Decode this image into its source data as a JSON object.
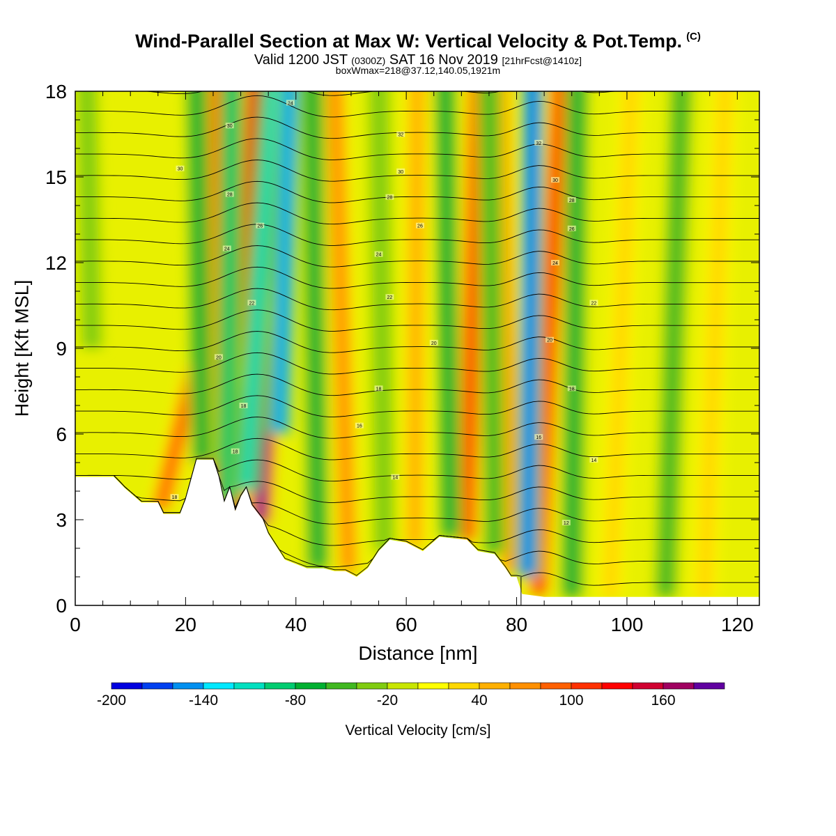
{
  "title": {
    "main": "Wind-Parallel Section at Max W: Vertical Velocity & Pot.Temp.",
    "mark": "(C)",
    "valid_a": "Valid 1200 JST ",
    "valid_b": "(0300Z)",
    "valid_c": " SAT 16 Nov 2019 ",
    "valid_d": "[21hrFcst@1410z]",
    "box": "boxWmax=218@37.12,140.05,1921m"
  },
  "chart_data": {
    "type": "heatmap",
    "xlabel": "Distance [nm]",
    "ylabel": "Height [Kft MSL]",
    "xlim": [
      0,
      124
    ],
    "ylim": [
      0,
      18
    ],
    "x_ticks": [
      0,
      20,
      40,
      60,
      80,
      100,
      120
    ],
    "y_ticks": [
      0,
      3,
      6,
      9,
      12,
      15,
      18
    ],
    "colorbar": {
      "label": "Vertical Velocity [cm/s]",
      "levels": [
        -200,
        -180,
        -160,
        -140,
        -120,
        -100,
        -80,
        -60,
        -40,
        -20,
        0,
        20,
        40,
        60,
        80,
        100,
        120,
        140,
        160,
        180,
        200
      ],
      "tick_labels": [
        "-200",
        "-140",
        "-80",
        "-20",
        "40",
        "100",
        "160"
      ],
      "colors": [
        "#0000e0",
        "#0040f0",
        "#0090f0",
        "#00e8ff",
        "#00e0c0",
        "#00cc70",
        "#00b030",
        "#40b820",
        "#80cc10",
        "#c8e600",
        "#ffff00",
        "#ffd800",
        "#ffb000",
        "#ff9000",
        "#ff6000",
        "#ff3000",
        "#ff0000",
        "#d00030",
        "#a00060",
        "#6000a0"
      ]
    },
    "terrain_top_kft": [
      [
        0,
        4.5
      ],
      [
        7,
        4.5
      ],
      [
        9,
        4.1
      ],
      [
        12,
        3.6
      ],
      [
        15,
        3.6
      ],
      [
        16,
        3.2
      ],
      [
        19,
        3.2
      ],
      [
        20,
        3.7
      ],
      [
        21,
        4.4
      ],
      [
        22,
        5.1
      ],
      [
        25,
        5.1
      ],
      [
        26,
        4.5
      ],
      [
        27,
        3.6
      ],
      [
        28,
        4.1
      ],
      [
        29,
        3.3
      ],
      [
        30,
        3.8
      ],
      [
        31,
        4.1
      ],
      [
        32,
        3.5
      ],
      [
        34,
        3.0
      ],
      [
        35,
        2.5
      ],
      [
        37,
        1.9
      ],
      [
        38,
        1.6
      ],
      [
        42,
        1.3
      ],
      [
        45,
        1.3
      ],
      [
        47,
        1.2
      ],
      [
        49,
        1.2
      ],
      [
        51,
        1.0
      ],
      [
        53,
        1.3
      ],
      [
        55,
        1.9
      ],
      [
        57,
        2.3
      ],
      [
        60,
        2.2
      ],
      [
        63,
        1.9
      ],
      [
        66,
        2.4
      ],
      [
        71,
        2.3
      ],
      [
        73,
        1.9
      ],
      [
        76,
        1.8
      ],
      [
        78,
        1.3
      ],
      [
        79,
        1.0
      ],
      [
        80,
        1.0
      ],
      [
        81,
        0.4
      ],
      [
        85,
        0.3
      ],
      [
        124,
        0.3
      ]
    ],
    "updraft_bands": [
      {
        "x0": 15.5,
        "y0": 3.4,
        "x1": 22,
        "y1": 7.5,
        "v": 90
      },
      {
        "x0": 24.5,
        "y0": 3.5,
        "x1": 26,
        "y1": 18,
        "v": 110
      },
      {
        "x0": 29,
        "y0": 3.3,
        "x1": 33,
        "y1": 18,
        "v": 160
      },
      {
        "x0": 33.5,
        "y0": 2.9,
        "x1": 38,
        "y1": 18,
        "v": 190
      },
      {
        "x0": 49.5,
        "y0": 1.2,
        "x1": 47,
        "y1": 18,
        "v": 80
      },
      {
        "x0": 61.5,
        "y0": 2.1,
        "x1": 62,
        "y1": 18,
        "v": 60
      },
      {
        "x0": 71,
        "y0": 2.3,
        "x1": 73,
        "y1": 18,
        "v": 110
      },
      {
        "x0": 79,
        "y0": 1.2,
        "x1": 77,
        "y1": 18,
        "v": 80
      },
      {
        "x0": 84,
        "y0": 0.4,
        "x1": 88,
        "y1": 18,
        "v": 120
      },
      {
        "x0": 97,
        "y0": 0.3,
        "x1": 101,
        "y1": 18,
        "v": 40
      },
      {
        "x0": 114,
        "y0": 0.3,
        "x1": 118,
        "y1": 18,
        "v": 40
      }
    ],
    "downdraft_bands": [
      {
        "x0": 23,
        "y0": 5.0,
        "x1": 22,
        "y1": 18,
        "v": -70
      },
      {
        "x0": 27.5,
        "y0": 3.6,
        "x1": 28.5,
        "y1": 18,
        "v": -90
      },
      {
        "x0": 31,
        "y0": 4.0,
        "x1": 36,
        "y1": 18,
        "v": -110
      },
      {
        "x0": 37,
        "y0": 6.0,
        "x1": 39,
        "y1": 18,
        "v": -160
      },
      {
        "x0": 44,
        "y0": 1.3,
        "x1": 43,
        "y1": 18,
        "v": -80
      },
      {
        "x0": 56,
        "y0": 1.9,
        "x1": 55,
        "y1": 18,
        "v": -40
      },
      {
        "x0": 68,
        "y0": 2.4,
        "x1": 67,
        "y1": 18,
        "v": -80
      },
      {
        "x0": 76,
        "y0": 1.8,
        "x1": 75,
        "y1": 18,
        "v": -60
      },
      {
        "x0": 82,
        "y0": 1.0,
        "x1": 83,
        "y1": 18,
        "v": -170
      },
      {
        "x0": 90,
        "y0": 0.3,
        "x1": 91,
        "y1": 18,
        "v": -80
      },
      {
        "x0": 107,
        "y0": 0.3,
        "x1": 110,
        "y1": 18,
        "v": -60
      },
      {
        "x0": 3,
        "y0": 9,
        "x1": 2,
        "y1": 18,
        "v": -25
      }
    ],
    "theta_contours_C": [
      10,
      12,
      14,
      16,
      18,
      20,
      22,
      24,
      26,
      28,
      30,
      32
    ],
    "contour_labels": [
      {
        "x": 18,
        "y": 3.8,
        "text": "18"
      },
      {
        "x": 29,
        "y": 5.4,
        "text": "18"
      },
      {
        "x": 30.5,
        "y": 7.0,
        "text": "18"
      },
      {
        "x": 26,
        "y": 8.7,
        "text": "20"
      },
      {
        "x": 32,
        "y": 10.6,
        "text": "22"
      },
      {
        "x": 27.5,
        "y": 12.5,
        "text": "24"
      },
      {
        "x": 33.5,
        "y": 13.3,
        "text": "26"
      },
      {
        "x": 28,
        "y": 14.4,
        "text": "28"
      },
      {
        "x": 19,
        "y": 15.3,
        "text": "30"
      },
      {
        "x": 28,
        "y": 16.8,
        "text": "30"
      },
      {
        "x": 39,
        "y": 17.6,
        "text": "24"
      },
      {
        "x": 51.5,
        "y": 6.3,
        "text": "16"
      },
      {
        "x": 55,
        "y": 7.6,
        "text": "18"
      },
      {
        "x": 58,
        "y": 4.5,
        "text": "14"
      },
      {
        "x": 65,
        "y": 9.2,
        "text": "20"
      },
      {
        "x": 57,
        "y": 10.8,
        "text": "22"
      },
      {
        "x": 55,
        "y": 12.3,
        "text": "24"
      },
      {
        "x": 62.5,
        "y": 13.3,
        "text": "26"
      },
      {
        "x": 57,
        "y": 14.3,
        "text": "28"
      },
      {
        "x": 59,
        "y": 15.2,
        "text": "30"
      },
      {
        "x": 59,
        "y": 16.5,
        "text": "32"
      },
      {
        "x": 84,
        "y": 16.2,
        "text": "32"
      },
      {
        "x": 87,
        "y": 14.9,
        "text": "30"
      },
      {
        "x": 90,
        "y": 14.2,
        "text": "28"
      },
      {
        "x": 90,
        "y": 13.2,
        "text": "26"
      },
      {
        "x": 87,
        "y": 12.0,
        "text": "24"
      },
      {
        "x": 94,
        "y": 10.6,
        "text": "22"
      },
      {
        "x": 86,
        "y": 9.3,
        "text": "20"
      },
      {
        "x": 90,
        "y": 7.6,
        "text": "18"
      },
      {
        "x": 84,
        "y": 5.9,
        "text": "16"
      },
      {
        "x": 94,
        "y": 5.1,
        "text": "14"
      },
      {
        "x": 89,
        "y": 2.9,
        "text": "12"
      }
    ]
  }
}
